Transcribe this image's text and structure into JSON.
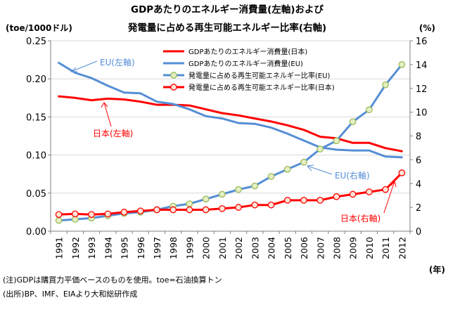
{
  "chart_data": {
    "type": "line",
    "title_line1": "GDPあたりのエネルギー消費量(左軸)および",
    "title_line2": "発電量に占める再生可能エネルギー比率(右軸)",
    "ylabel_left": "(toe/1000ドル)",
    "ylabel_right": "(%)",
    "xlabel": "(年)",
    "ylim_left": [
      0,
      0.25
    ],
    "ylim_right": [
      0,
      16
    ],
    "yticks_left": [
      "0.00",
      "0.05",
      "0.10",
      "0.15",
      "0.20",
      "0.25"
    ],
    "yticks_right": [
      "0",
      "2",
      "4",
      "6",
      "8",
      "10",
      "12",
      "14",
      "16"
    ],
    "categories": [
      "1991",
      "1992",
      "1993",
      "1994",
      "1995",
      "1996",
      "1997",
      "1998",
      "1999",
      "2000",
      "2001",
      "2002",
      "2003",
      "2004",
      "2005",
      "2006",
      "2007",
      "2008",
      "2009",
      "2010",
      "2011",
      "2012"
    ],
    "series": [
      {
        "name": "GDPあたりのエネルギー消費量(日本)",
        "axis": "left",
        "color": "#ff0000",
        "marker": "none",
        "values": [
          0.177,
          0.175,
          0.172,
          0.174,
          0.173,
          0.17,
          0.166,
          0.166,
          0.165,
          0.16,
          0.155,
          0.152,
          0.148,
          0.144,
          0.139,
          0.133,
          0.124,
          0.122,
          0.116,
          0.116,
          0.109,
          0.105
        ]
      },
      {
        "name": "GDPあたりのエネルギー消費量(EU)",
        "axis": "left",
        "color": "#558ed5",
        "marker": "none",
        "values": [
          0.221,
          0.208,
          0.201,
          0.191,
          0.182,
          0.181,
          0.17,
          0.167,
          0.16,
          0.151,
          0.148,
          0.142,
          0.141,
          0.136,
          0.128,
          0.119,
          0.11,
          0.107,
          0.106,
          0.106,
          0.098,
          0.097
        ]
      },
      {
        "name": "発電量に占める再生可能エネルギー比率(EU)",
        "axis": "right",
        "color": "#558ed5",
        "marker": "circle",
        "marker_fill": "#e4efc4",
        "values": [
          0.9,
          1.0,
          1.1,
          1.3,
          1.5,
          1.6,
          1.8,
          2.1,
          2.3,
          2.7,
          3.1,
          3.5,
          3.8,
          4.6,
          5.2,
          5.8,
          6.9,
          7.6,
          9.2,
          10.2,
          12.3,
          14.0
        ]
      },
      {
        "name": "発電量に占める再生可能エネルギー比率(日本)",
        "axis": "right",
        "color": "#ff0000",
        "marker": "circle",
        "marker_fill": "#fce4d6",
        "values": [
          1.4,
          1.45,
          1.4,
          1.45,
          1.6,
          1.7,
          1.8,
          1.8,
          1.8,
          1.8,
          1.9,
          2.0,
          2.2,
          2.2,
          2.6,
          2.6,
          2.6,
          2.9,
          3.1,
          3.3,
          3.5,
          4.9
        ]
      }
    ],
    "annotations": [
      {
        "text": "EU(左軸)",
        "color": "#558ed5"
      },
      {
        "text": "日本(左軸)",
        "color": "#ff0000"
      },
      {
        "text": "EU(右軸)",
        "color": "#558ed5"
      },
      {
        "text": "日本(右軸)",
        "color": "#ff0000"
      }
    ],
    "notes": [
      "(注)GDPは購買力平価ベースのものを使用。toe=石油換算トン",
      "(出所)BP、IMF、EIAより大和総研作成"
    ],
    "legend_position": "top-right",
    "grid": true
  }
}
